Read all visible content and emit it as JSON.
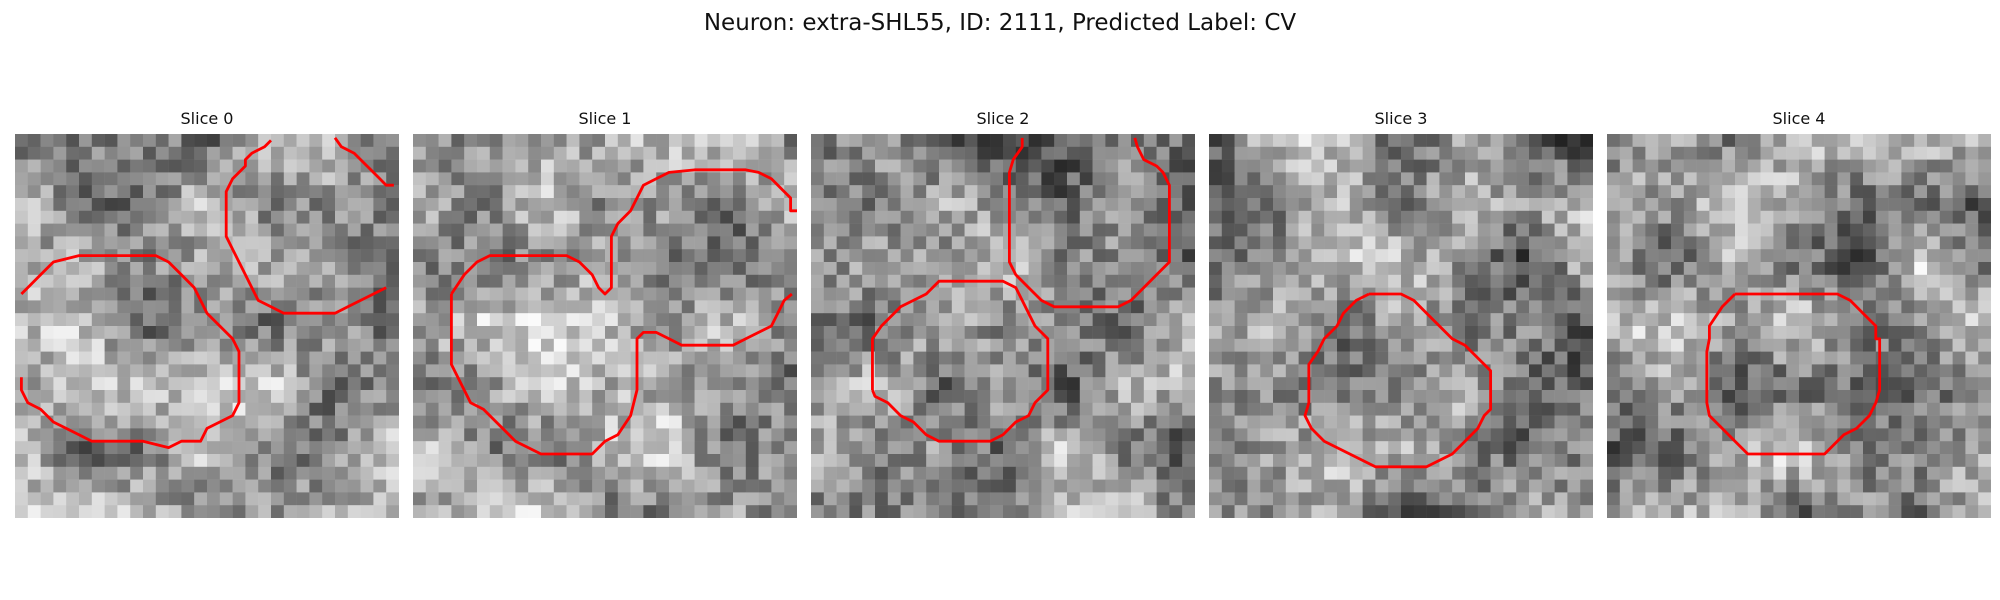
{
  "figure": {
    "title": "Neuron: extra-SHL55, ID: 2111, Predicted Label: CV",
    "contour_color": "#ff0000",
    "colormap": "grayscale"
  },
  "panels": [
    {
      "title": "Slice 0",
      "seed": 11,
      "tone": 0.62
    },
    {
      "title": "Slice 1",
      "seed": 23,
      "tone": 0.64
    },
    {
      "title": "Slice 2",
      "seed": 37,
      "tone": 0.56
    },
    {
      "title": "Slice 3",
      "seed": 41,
      "tone": 0.52
    },
    {
      "title": "Slice 4",
      "seed": 59,
      "tone": 0.6
    }
  ]
}
